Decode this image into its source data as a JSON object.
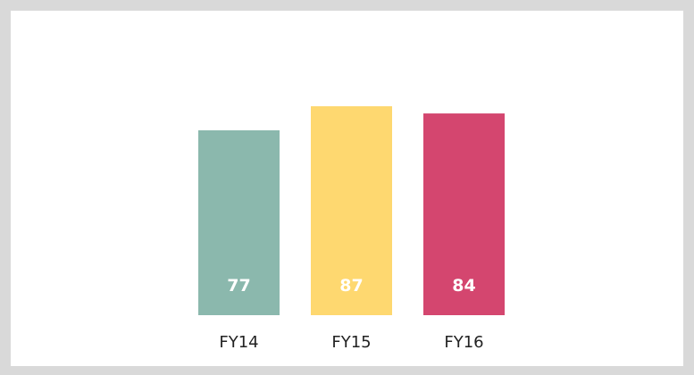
{
  "chart_data": {
    "type": "bar",
    "categories": [
      "FY14",
      "FY15",
      "FY16"
    ],
    "values": [
      77,
      87,
      84
    ],
    "colors": [
      "#8bb8ad",
      "#fed870",
      "#d4466f"
    ]
  }
}
